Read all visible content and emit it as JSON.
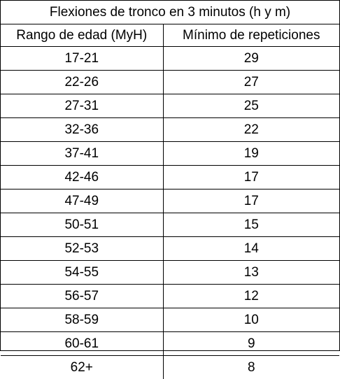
{
  "table": {
    "title": "Flexiones de tronco en 3 minutos (h y m)",
    "headers": [
      "Rango de edad (MyH)",
      "Mínimo de repeticiones"
    ],
    "rows": [
      [
        "17-21",
        "29"
      ],
      [
        "22-26",
        "27"
      ],
      [
        "27-31",
        "25"
      ],
      [
        "32-36",
        "22"
      ],
      [
        "37-41",
        "19"
      ],
      [
        "42-46",
        "17"
      ],
      [
        "47-49",
        "17"
      ],
      [
        "50-51",
        "15"
      ],
      [
        "52-53",
        "14"
      ],
      [
        "54-55",
        "13"
      ],
      [
        "56-57",
        "12"
      ],
      [
        "58-59",
        "10"
      ],
      [
        "60-61",
        "9"
      ],
      [
        "62+",
        "8"
      ]
    ]
  }
}
